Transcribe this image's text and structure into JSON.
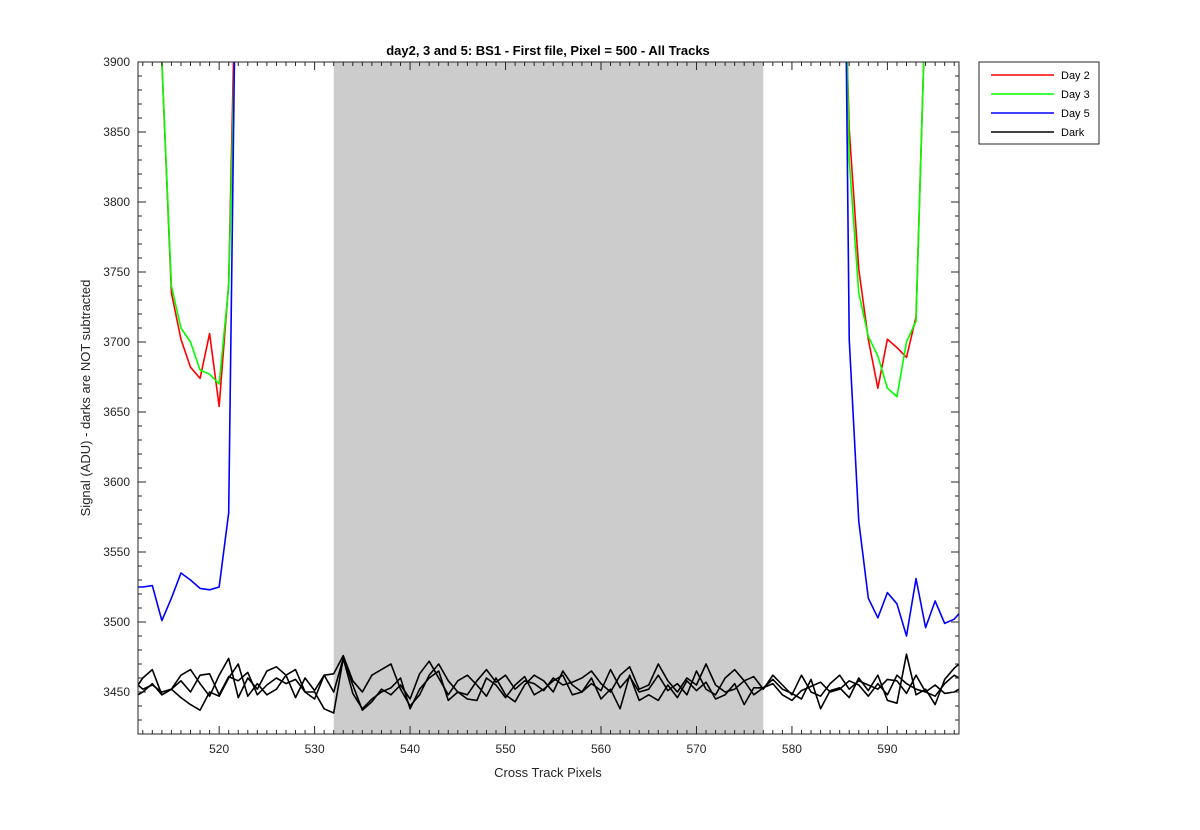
{
  "chart_data": {
    "type": "line",
    "title": "day2, 3 and 5: BS1 - First file, Pixel = 500 - All Tracks",
    "xlabel": "Cross Track Pixels",
    "ylabel": "Signal (ADU) - darks are NOT subtracted",
    "xlim": [
      511.5,
      597.5
    ],
    "ylim": [
      3420,
      3900
    ],
    "xticks": [
      520,
      530,
      540,
      550,
      560,
      570,
      580,
      590
    ],
    "yticks": [
      3450,
      3500,
      3550,
      3600,
      3650,
      3700,
      3750,
      3800,
      3850,
      3900
    ],
    "grid": false,
    "legend_location": "outside-top-right",
    "shaded_region": {
      "x_range": [
        532,
        577
      ],
      "color": "#cccccc"
    },
    "series": [
      {
        "name": "Day 2",
        "color": "#ff0000",
        "segments": [
          {
            "x": [
              514,
              515,
              516,
              517,
              518,
              519,
              520,
              521,
              521.5
            ],
            "y": [
              3900,
              3735,
              3702,
              3682,
              3674,
              3706,
              3654,
              3742,
              3900
            ]
          },
          {
            "x": [
              585.8,
              586,
              587,
              588,
              589,
              590,
              591,
              592,
              593,
              593.8
            ],
            "y": [
              3900,
              3852,
              3752,
              3702,
              3667,
              3702,
              3696,
              3689,
              3718,
              3900
            ]
          }
        ]
      },
      {
        "name": "Day 3",
        "color": "#00ff00",
        "segments": [
          {
            "x": [
              514,
              515,
              516,
              517,
              518,
              519,
              520,
              521,
              521.6
            ],
            "y": [
              3900,
              3740,
              3710,
              3700,
              3680,
              3677,
              3670,
              3740,
              3900
            ]
          },
          {
            "x": [
              585.8,
              586,
              587,
              588,
              589,
              590,
              591,
              592,
              593,
              593.8
            ],
            "y": [
              3900,
              3830,
              3735,
              3704,
              3690,
              3667,
              3661,
              3700,
              3715,
              3900
            ]
          }
        ]
      },
      {
        "name": "Day 5",
        "color": "#0000ff",
        "segments": [
          {
            "x": [
              511.5,
              512,
              513,
              514,
              515,
              516,
              517,
              518,
              519,
              520,
              521,
              521.6
            ],
            "y": [
              3525,
              3525,
              3526,
              3501,
              3517,
              3535,
              3530,
              3524,
              3523,
              3525,
              3578,
              3900
            ]
          },
          {
            "x": [
              585.7,
              586,
              587,
              588,
              589,
              590,
              591,
              592,
              593,
              594,
              595,
              596,
              597,
              597.5
            ],
            "y": [
              3900,
              3702,
              3572,
              3517,
              3503,
              3521,
              3513,
              3490,
              3531,
              3496,
              3515,
              3499,
              3502,
              3506
            ]
          }
        ]
      },
      {
        "name": "Dark",
        "color": "#000000",
        "segments": [
          {
            "x": [
              511.5,
              512,
              513,
              514,
              515,
              516,
              517,
              518,
              519,
              520,
              521,
              522,
              523,
              524,
              525,
              526,
              527,
              528,
              529,
              530,
              531,
              532,
              533,
              534,
              535,
              536,
              537,
              538,
              539,
              540,
              541,
              542,
              543,
              544,
              545,
              546,
              547,
              548,
              549,
              550,
              551,
              552,
              553,
              554,
              555,
              556,
              557,
              558,
              559,
              560,
              561,
              562,
              563,
              564,
              565,
              566,
              567,
              568,
              569,
              570,
              571,
              572,
              573,
              574,
              575,
              576,
              577,
              578,
              579,
              580,
              581,
              582,
              583,
              584,
              585,
              586,
              587,
              588,
              589,
              590,
              591,
              592,
              593,
              594,
              595,
              596,
              597,
              597.5
            ],
            "y": [
              3455,
              3460,
              3466,
              3448,
              3452,
              3462,
              3466,
              3456,
              3447,
              3462,
              3474,
              3446,
              3460,
              3452,
              3465,
              3468,
              3462,
              3446,
              3460,
              3451,
              3462,
              3463,
              3476,
              3458,
              3450,
              3462,
              3466,
              3470,
              3452,
              3440,
              3448,
              3462,
              3470,
              3458,
              3450,
              3448,
              3458,
              3466,
              3457,
              3462,
              3452,
              3458,
              3456,
              3451,
              3460,
              3455,
              3457,
              3460,
              3465,
              3456,
              3450,
              3462,
              3468,
              3452,
              3455,
              3470,
              3458,
              3450,
              3460,
              3455,
              3470,
              3455,
              3450,
              3452,
              3458,
              3461,
              3452,
              3462,
              3455,
              3448,
              3462,
              3450,
              3447,
              3456,
              3462,
              3452,
              3458,
              3455,
              3452,
              3459,
              3458,
              3449,
              3462,
              3450,
              3447,
              3456,
              3462,
              3460
            ]
          },
          {
            "x": [
              511.5,
              512,
              513,
              514,
              515,
              516,
              517,
              518,
              519,
              520,
              521,
              522,
              523,
              524,
              525,
              526,
              527,
              528,
              529,
              530,
              531,
              532,
              533,
              534,
              535,
              536,
              537,
              538,
              539,
              540,
              541,
              542,
              543,
              544,
              545,
              546,
              547,
              548,
              549,
              550,
              551,
              552,
              553,
              554,
              555,
              556,
              557,
              558,
              559,
              560,
              561,
              562,
              563,
              564,
              565,
              566,
              567,
              568,
              569,
              570,
              571,
              572,
              573,
              574,
              575,
              576,
              577,
              578,
              579,
              580,
              581,
              582,
              583,
              584,
              585,
              586,
              587,
              588,
              589,
              590,
              591,
              592,
              593,
              594,
              595,
              596,
              597,
              597.5
            ],
            "y": [
              3448,
              3450,
              3456,
              3448,
              3452,
              3458,
              3450,
              3462,
              3463,
              3448,
              3461,
              3458,
              3464,
              3448,
              3455,
              3460,
              3456,
              3459,
              3450,
              3445,
              3462,
              3450,
              3474,
              3455,
              3437,
              3443,
              3452,
              3448,
              3455,
              3445,
              3463,
              3472,
              3460,
              3448,
              3458,
              3462,
              3455,
              3447,
              3460,
              3448,
              3443,
              3455,
              3462,
              3458,
              3450,
              3465,
              3455,
              3450,
              3456,
              3451,
              3466,
              3453,
              3461,
              3450,
              3452,
              3462,
              3451,
              3456,
              3448,
              3465,
              3452,
              3448,
              3460,
              3466,
              3458,
              3448,
              3453,
              3456,
              3448,
              3444,
              3451,
              3454,
              3457,
              3450,
              3452,
              3458,
              3455,
              3447,
              3456,
              3448,
              3462,
              3456,
              3452,
              3450,
              3455,
              3449,
              3450,
              3452
            ]
          },
          {
            "x": [
              511.5,
              512,
              513,
              514,
              515,
              516,
              517,
              518,
              519,
              520,
              521,
              522,
              523,
              524,
              525,
              526,
              527,
              528,
              529,
              530,
              531,
              532,
              533,
              534,
              535,
              536,
              537,
              538,
              539,
              540,
              541,
              542,
              543,
              544,
              545,
              546,
              547,
              548,
              549,
              550,
              551,
              552,
              553,
              554,
              555,
              556,
              557,
              558,
              559,
              560,
              561,
              562,
              563,
              564,
              565,
              566,
              567,
              568,
              569,
              570,
              571,
              572,
              573,
              574,
              575,
              576,
              577,
              578,
              579,
              580,
              581,
              582,
              583,
              584,
              585,
              586,
              587,
              588,
              589,
              590,
              591,
              592,
              593,
              594,
              595,
              596,
              597,
              597.5
            ],
            "y": [
              3455,
              3452,
              3455,
              3450,
              3452,
              3446,
              3441,
              3437,
              3450,
              3447,
              3460,
              3470,
              3447,
              3456,
              3448,
              3452,
              3462,
              3466,
              3450,
              3450,
              3438,
              3435,
              3474,
              3449,
              3438,
              3445,
              3450,
              3453,
              3460,
              3438,
              3452,
              3460,
              3465,
              3444,
              3450,
              3445,
              3444,
              3460,
              3455,
              3446,
              3455,
              3461,
              3448,
              3452,
              3458,
              3462,
              3448,
              3450,
              3460,
              3445,
              3452,
              3438,
              3462,
              3444,
              3448,
              3444,
              3455,
              3446,
              3458,
              3451,
              3457,
              3445,
              3448,
              3456,
              3441,
              3453,
              3453,
              3459,
              3452,
              3449,
              3445,
              3459,
              3438,
              3451,
              3453,
              3446,
              3460,
              3451,
              3462,
              3444,
              3442,
              3477,
              3448,
              3452,
              3441,
              3459,
              3467,
              3470
            ]
          }
        ]
      }
    ]
  }
}
